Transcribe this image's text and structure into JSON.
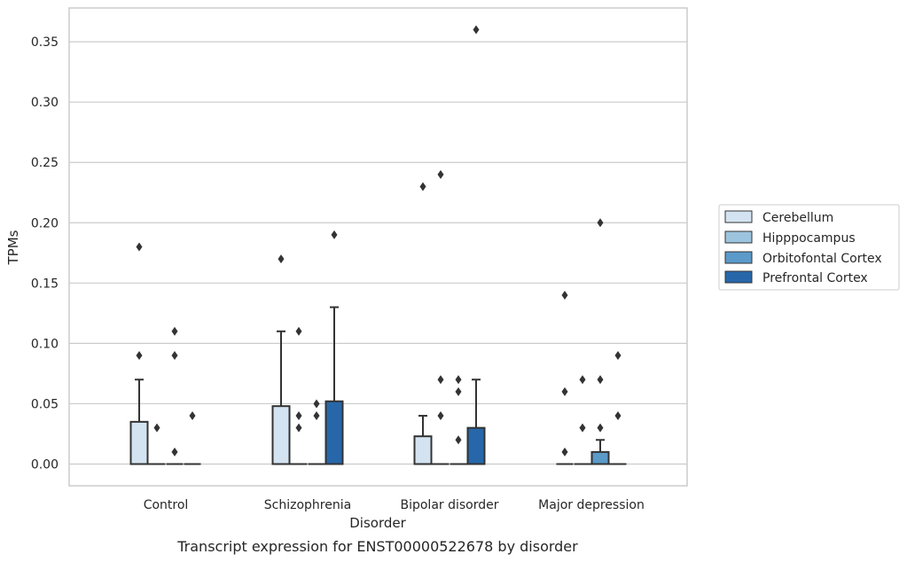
{
  "chart_data": {
    "type": "box",
    "caption": "Transcript expression for ENST00000522678 by disorder",
    "xlabel": "Disorder",
    "ylabel": "TPMs",
    "ylim": [
      -0.018,
      0.378
    ],
    "yticks": [
      "0.00",
      "0.05",
      "0.10",
      "0.15",
      "0.20",
      "0.25",
      "0.30",
      "0.35"
    ],
    "ytick_values": [
      0,
      0.05,
      0.1,
      0.15,
      0.2,
      0.25,
      0.3,
      0.35
    ],
    "grid": "horizontal",
    "legend_position": "right",
    "categories": [
      "Control",
      "Schizophrenia",
      "Bipolar disorder",
      "Major depression"
    ],
    "series": [
      {
        "name": "Cerebellum",
        "color": "#d3e3f1",
        "boxes": [
          {
            "q1": 0,
            "median": 0,
            "q3": 0.035,
            "whisker_low": 0,
            "whisker_high": 0.07,
            "outliers": [
              0.09,
              0.18
            ]
          },
          {
            "q1": 0,
            "median": 0,
            "q3": 0.048,
            "whisker_low": 0,
            "whisker_high": 0.11,
            "outliers": [
              0.17
            ]
          },
          {
            "q1": 0,
            "median": 0,
            "q3": 0.023,
            "whisker_low": 0,
            "whisker_high": 0.04,
            "outliers": [
              0.23
            ]
          },
          {
            "q1": 0,
            "median": 0,
            "q3": 0,
            "whisker_low": 0,
            "whisker_high": 0,
            "outliers": [
              0.01,
              0.06,
              0.14
            ]
          }
        ]
      },
      {
        "name": "Hipppocampus",
        "color": "#9dc4de",
        "boxes": [
          {
            "q1": 0,
            "median": 0,
            "q3": 0,
            "whisker_low": 0,
            "whisker_high": 0,
            "outliers": [
              0.03
            ]
          },
          {
            "q1": 0,
            "median": 0,
            "q3": 0,
            "whisker_low": 0,
            "whisker_high": 0,
            "outliers": [
              0.03,
              0.04,
              0.11
            ]
          },
          {
            "q1": 0,
            "median": 0,
            "q3": 0,
            "whisker_low": 0,
            "whisker_high": 0,
            "outliers": [
              0.04,
              0.07,
              0.24
            ]
          },
          {
            "q1": 0,
            "median": 0,
            "q3": 0,
            "whisker_low": 0,
            "whisker_high": 0,
            "outliers": [
              0.03,
              0.07
            ]
          }
        ]
      },
      {
        "name": "Orbitofontal Cortex",
        "color": "#5b9ac9",
        "boxes": [
          {
            "q1": 0,
            "median": 0,
            "q3": 0,
            "whisker_low": 0,
            "whisker_high": 0,
            "outliers": [
              0.01,
              0.09,
              0.11
            ]
          },
          {
            "q1": 0,
            "median": 0,
            "q3": 0,
            "whisker_low": 0,
            "whisker_high": 0,
            "outliers": [
              0.04,
              0.05
            ]
          },
          {
            "q1": 0,
            "median": 0,
            "q3": 0,
            "whisker_low": 0,
            "whisker_high": 0,
            "outliers": [
              0.02,
              0.06,
              0.07
            ]
          },
          {
            "q1": 0,
            "median": 0,
            "q3": 0.01,
            "whisker_low": 0,
            "whisker_high": 0.02,
            "outliers": [
              0.03,
              0.07,
              0.2
            ]
          }
        ]
      },
      {
        "name": "Prefrontal Cortex",
        "color": "#2767a9",
        "boxes": [
          {
            "q1": 0,
            "median": 0,
            "q3": 0,
            "whisker_low": 0,
            "whisker_high": 0,
            "outliers": [
              0.04
            ]
          },
          {
            "q1": 0,
            "median": 0,
            "q3": 0.052,
            "whisker_low": 0,
            "whisker_high": 0.13,
            "outliers": [
              0.19
            ]
          },
          {
            "q1": 0,
            "median": 0,
            "q3": 0.03,
            "whisker_low": 0,
            "whisker_high": 0.07,
            "outliers": [
              0.36
            ]
          },
          {
            "q1": 0,
            "median": 0,
            "q3": 0,
            "whisker_low": 0,
            "whisker_high": 0,
            "outliers": [
              0.04,
              0.09
            ]
          }
        ]
      }
    ]
  }
}
